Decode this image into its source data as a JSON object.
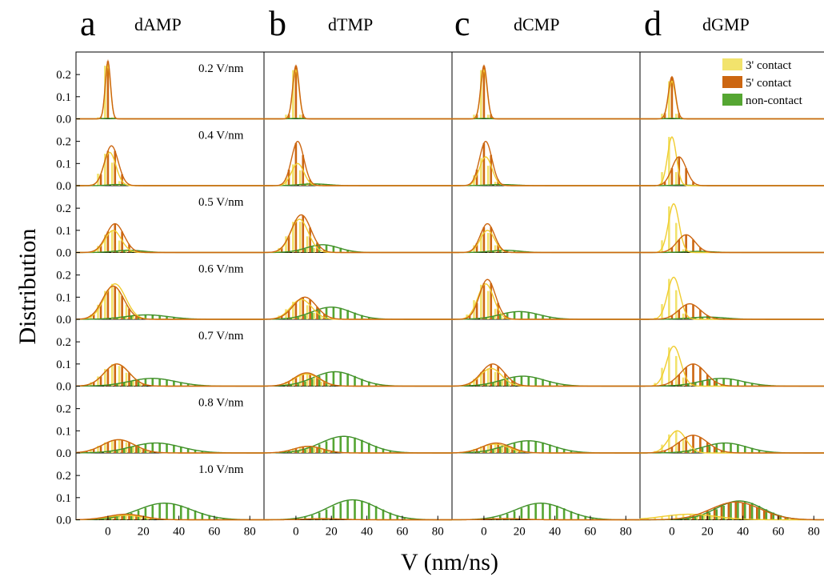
{
  "chart_data": {
    "type": "bar",
    "xlabel": "V (nm/ns)",
    "ylabel": "Distribution",
    "xlim": [
      -18,
      88
    ],
    "ylim": [
      0,
      0.28
    ],
    "x_ticks": [
      0,
      20,
      40,
      60,
      80
    ],
    "y_ticks": [
      0.0,
      0.1,
      0.2
    ],
    "legend_position": "top-right",
    "colors": {
      "3prime": "#f2e36c",
      "5prime": "#cc6611",
      "noncontact": "#55a632"
    },
    "legend": [
      {
        "key": "3prime",
        "label": "3' contact"
      },
      {
        "key": "5prime",
        "label": "5' contact"
      },
      {
        "key": "noncontact",
        "label": "non-contact"
      }
    ],
    "columns": [
      {
        "letter": "a",
        "title": "dAMP"
      },
      {
        "letter": "b",
        "title": "dTMP"
      },
      {
        "letter": "c",
        "title": "dCMP"
      },
      {
        "letter": "d",
        "title": "dGMP"
      }
    ],
    "rows": [
      {
        "field": "0.2 V/nm"
      },
      {
        "field": "0.4 V/nm"
      },
      {
        "field": "0.5 V/nm"
      },
      {
        "field": "0.6 V/nm"
      },
      {
        "field": "0.7 V/nm"
      },
      {
        "field": "0.8 V/nm"
      },
      {
        "field": "1.0 V/nm"
      }
    ],
    "panels": [
      [
        {
          "3prime": {
            "mean": 0,
            "sigma": 1.5,
            "peak": 0.24
          },
          "5prime": {
            "mean": 0,
            "sigma": 1.5,
            "peak": 0.26
          },
          "noncontact": {
            "mean": 0,
            "sigma": 3,
            "peak": 0.002
          }
        },
        {
          "3prime": {
            "mean": 1,
            "sigma": 3.5,
            "peak": 0.15
          },
          "5prime": {
            "mean": 2,
            "sigma": 3.8,
            "peak": 0.18
          },
          "noncontact": {
            "mean": 5,
            "sigma": 5,
            "peak": 0.005
          }
        },
        {
          "3prime": {
            "mean": 3,
            "sigma": 4.5,
            "peak": 0.1
          },
          "5prime": {
            "mean": 4,
            "sigma": 5,
            "peak": 0.13
          },
          "noncontact": {
            "mean": 12,
            "sigma": 8,
            "peak": 0.01
          }
        },
        {
          "3prime": {
            "mean": 4,
            "sigma": 6,
            "peak": 0.16
          },
          "5prime": {
            "mean": 3,
            "sigma": 6,
            "peak": 0.15
          },
          "noncontact": {
            "mean": 22,
            "sigma": 12,
            "peak": 0.02
          }
        },
        {
          "3prime": {
            "mean": 5,
            "sigma": 7,
            "peak": 0.1
          },
          "5prime": {
            "mean": 5,
            "sigma": 7,
            "peak": 0.1
          },
          "noncontact": {
            "mean": 25,
            "sigma": 13,
            "peak": 0.035
          }
        },
        {
          "3prime": {
            "mean": 6,
            "sigma": 9,
            "peak": 0.06
          },
          "5prime": {
            "mean": 6,
            "sigma": 9,
            "peak": 0.06
          },
          "noncontact": {
            "mean": 27,
            "sigma": 14,
            "peak": 0.045
          }
        },
        {
          "3prime": {
            "mean": 10,
            "sigma": 10,
            "peak": 0.02
          },
          "5prime": {
            "mean": 10,
            "sigma": 10,
            "peak": 0.025
          },
          "noncontact": {
            "mean": 32,
            "sigma": 15,
            "peak": 0.075
          }
        }
      ],
      [
        {
          "3prime": {
            "mean": 0,
            "sigma": 1.8,
            "peak": 0.22
          },
          "5prime": {
            "mean": 0,
            "sigma": 1.8,
            "peak": 0.24
          },
          "noncontact": {
            "mean": 0,
            "sigma": 3,
            "peak": 0.002
          }
        },
        {
          "3prime": {
            "mean": 1,
            "sigma": 3.5,
            "peak": 0.1
          },
          "5prime": {
            "mean": 1,
            "sigma": 3.5,
            "peak": 0.2
          },
          "noncontact": {
            "mean": 10,
            "sigma": 8,
            "peak": 0.008
          }
        },
        {
          "3prime": {
            "mean": 2,
            "sigma": 5,
            "peak": 0.15
          },
          "5prime": {
            "mean": 3,
            "sigma": 5.5,
            "peak": 0.17
          },
          "noncontact": {
            "mean": 15,
            "sigma": 9,
            "peak": 0.035
          }
        },
        {
          "3prime": {
            "mean": 3,
            "sigma": 6,
            "peak": 0.09
          },
          "5prime": {
            "mean": 5,
            "sigma": 6.5,
            "peak": 0.1
          },
          "noncontact": {
            "mean": 20,
            "sigma": 11,
            "peak": 0.055
          }
        },
        {
          "3prime": {
            "mean": 6,
            "sigma": 7,
            "peak": 0.055
          },
          "5prime": {
            "mean": 6,
            "sigma": 7,
            "peak": 0.06
          },
          "noncontact": {
            "mean": 22,
            "sigma": 12,
            "peak": 0.065
          }
        },
        {
          "3prime": {
            "mean": 7,
            "sigma": 8,
            "peak": 0.03
          },
          "5prime": {
            "mean": 7,
            "sigma": 8,
            "peak": 0.03
          },
          "noncontact": {
            "mean": 27,
            "sigma": 13,
            "peak": 0.075
          }
        },
        {
          "3prime": {
            "mean": 15,
            "sigma": 10,
            "peak": 0.005
          },
          "5prime": {
            "mean": 15,
            "sigma": 10,
            "peak": 0.005
          },
          "noncontact": {
            "mean": 32,
            "sigma": 14,
            "peak": 0.09
          }
        }
      ],
      [
        {
          "3prime": {
            "mean": 0,
            "sigma": 1.8,
            "peak": 0.22
          },
          "5prime": {
            "mean": 0,
            "sigma": 1.8,
            "peak": 0.24
          },
          "noncontact": {
            "mean": 0,
            "sigma": 3,
            "peak": 0.002
          }
        },
        {
          "3prime": {
            "mean": 1,
            "sigma": 3.5,
            "peak": 0.13
          },
          "5prime": {
            "mean": 1,
            "sigma": 3.5,
            "peak": 0.2
          },
          "noncontact": {
            "mean": 10,
            "sigma": 8,
            "peak": 0.005
          }
        },
        {
          "3prime": {
            "mean": 2,
            "sigma": 4,
            "peak": 0.1
          },
          "5prime": {
            "mean": 2,
            "sigma": 4,
            "peak": 0.13
          },
          "noncontact": {
            "mean": 12,
            "sigma": 8,
            "peak": 0.01
          }
        },
        {
          "3prime": {
            "mean": 1,
            "sigma": 4.5,
            "peak": 0.16
          },
          "5prime": {
            "mean": 2,
            "sigma": 4.5,
            "peak": 0.18
          },
          "noncontact": {
            "mean": 20,
            "sigma": 11,
            "peak": 0.035
          }
        },
        {
          "3prime": {
            "mean": 4,
            "sigma": 6,
            "peak": 0.08
          },
          "5prime": {
            "mean": 5,
            "sigma": 6.5,
            "peak": 0.1
          },
          "noncontact": {
            "mean": 22,
            "sigma": 12,
            "peak": 0.045
          }
        },
        {
          "3prime": {
            "mean": 6,
            "sigma": 8,
            "peak": 0.04
          },
          "5prime": {
            "mean": 7,
            "sigma": 8,
            "peak": 0.045
          },
          "noncontact": {
            "mean": 25,
            "sigma": 13,
            "peak": 0.055
          }
        },
        {
          "3prime": {
            "mean": 12,
            "sigma": 10,
            "peak": 0.005
          },
          "5prime": {
            "mean": 12,
            "sigma": 10,
            "peak": 0.005
          },
          "noncontact": {
            "mean": 32,
            "sigma": 14,
            "peak": 0.075
          }
        }
      ],
      [
        {
          "3prime": {
            "mean": 0,
            "sigma": 2,
            "peak": 0.17
          },
          "5prime": {
            "mean": 0,
            "sigma": 2,
            "peak": 0.19
          },
          "noncontact": {
            "mean": 0,
            "sigma": 3,
            "peak": 0.002
          }
        },
        {
          "3prime": {
            "mean": 0,
            "sigma": 2.5,
            "peak": 0.22
          },
          "5prime": {
            "mean": 4,
            "sigma": 4,
            "peak": 0.13
          },
          "noncontact": {
            "mean": 5,
            "sigma": 5,
            "peak": 0.003
          }
        },
        {
          "3prime": {
            "mean": 1,
            "sigma": 3,
            "peak": 0.22
          },
          "5prime": {
            "mean": 8,
            "sigma": 5,
            "peak": 0.08
          },
          "noncontact": {
            "mean": 15,
            "sigma": 8,
            "peak": 0.005
          }
        },
        {
          "3prime": {
            "mean": 1,
            "sigma": 3.5,
            "peak": 0.19
          },
          "5prime": {
            "mean": 10,
            "sigma": 6,
            "peak": 0.07
          },
          "noncontact": {
            "mean": 20,
            "sigma": 10,
            "peak": 0.01
          }
        },
        {
          "3prime": {
            "mean": 1,
            "sigma": 4,
            "peak": 0.18
          },
          "5prime": {
            "mean": 12,
            "sigma": 7,
            "peak": 0.1
          },
          "noncontact": {
            "mean": 28,
            "sigma": 12,
            "peak": 0.035
          }
        },
        {
          "3prime": {
            "mean": 3,
            "sigma": 5,
            "peak": 0.1
          },
          "5prime": {
            "mean": 12,
            "sigma": 8,
            "peak": 0.08
          },
          "noncontact": {
            "mean": 30,
            "sigma": 12,
            "peak": 0.045
          }
        },
        {
          "3prime": {
            "mean": 10,
            "sigma": 15,
            "peak": 0.025
          },
          "5prime": {
            "mean": 36,
            "sigma": 14,
            "peak": 0.08
          },
          "noncontact": {
            "mean": 38,
            "sigma": 13,
            "peak": 0.085
          }
        }
      ]
    ]
  }
}
